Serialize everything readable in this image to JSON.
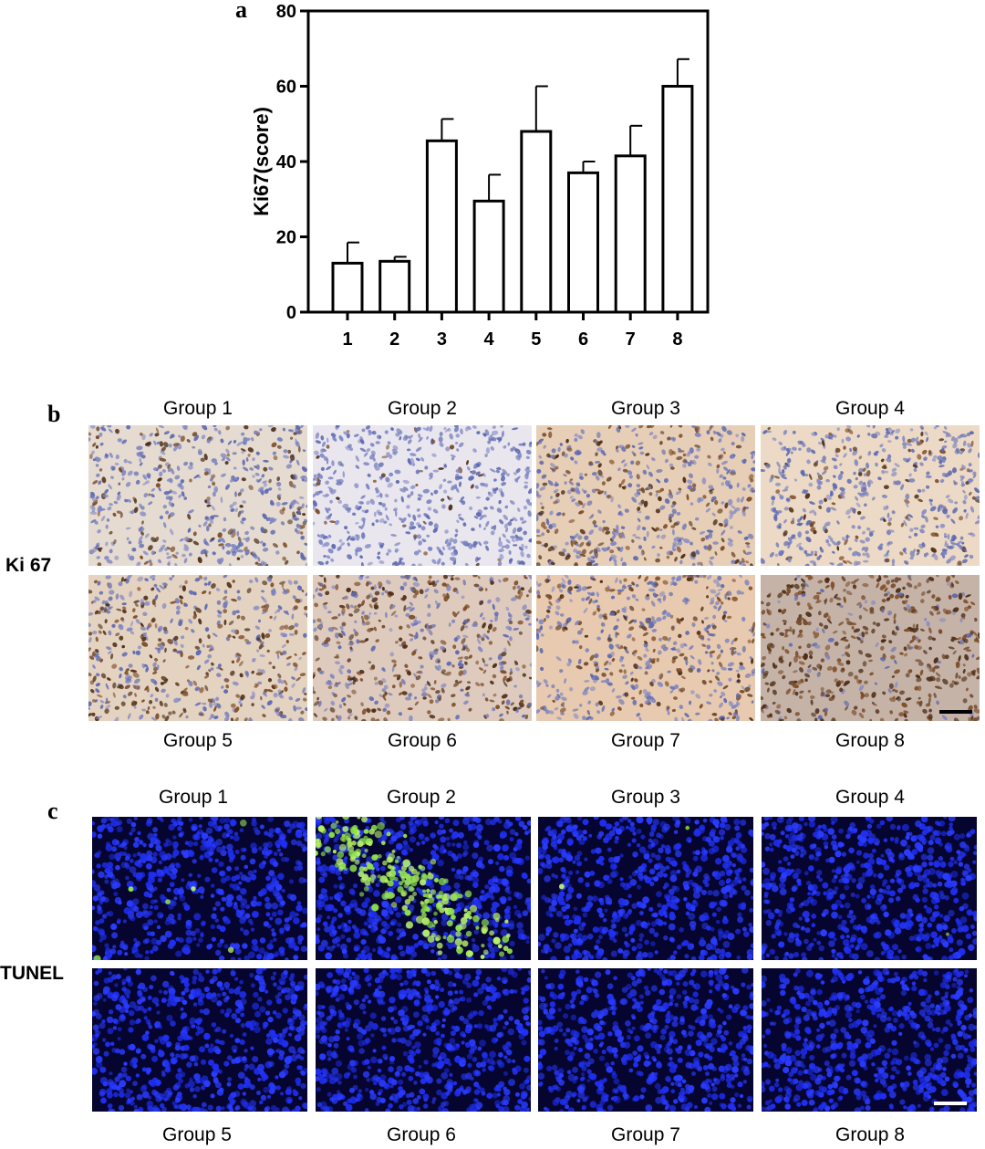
{
  "panels": {
    "a": {
      "letter": "a"
    },
    "b": {
      "letter": "b",
      "row_label": "Ki 67",
      "top_groups": [
        "Group 1",
        "Group 2",
        "Group 3",
        "Group 4"
      ],
      "bottom_groups": [
        "Group 5",
        "Group 6",
        "Group 7",
        "Group 8"
      ],
      "colors": {
        "background": "#efe3d6",
        "stain_brown": "#5a3418",
        "nuclei_blue": "#5b68b0",
        "scale_bar": "#000000"
      }
    },
    "c": {
      "letter": "c",
      "row_label": "TUNEL",
      "top_groups": [
        "Group 1",
        "Group 2",
        "Group 3",
        "Group 4"
      ],
      "bottom_groups": [
        "Group 5",
        "Group 6",
        "Group 7",
        "Group 8"
      ],
      "colors": {
        "background": "#050530",
        "nuclei_blue": "#1f2ff2",
        "tunel_green": "#8fe34a",
        "scale_bar": "#ffffff"
      }
    }
  },
  "chart_data": {
    "type": "bar",
    "categories": [
      "1",
      "2",
      "3",
      "4",
      "5",
      "6",
      "7",
      "8"
    ],
    "values": [
      13,
      13.5,
      45.5,
      29.5,
      48,
      37,
      41.5,
      60
    ],
    "errors": [
      5.5,
      1.2,
      5.8,
      7,
      12,
      3,
      8,
      7.2
    ],
    "ylabel": "Ki67(score)",
    "xlabel": "",
    "title": "",
    "ylim": [
      0,
      80
    ],
    "yticks": [
      0,
      20,
      40,
      60,
      80
    ],
    "bar_fill": "#ffffff",
    "bar_stroke": "#000000"
  }
}
